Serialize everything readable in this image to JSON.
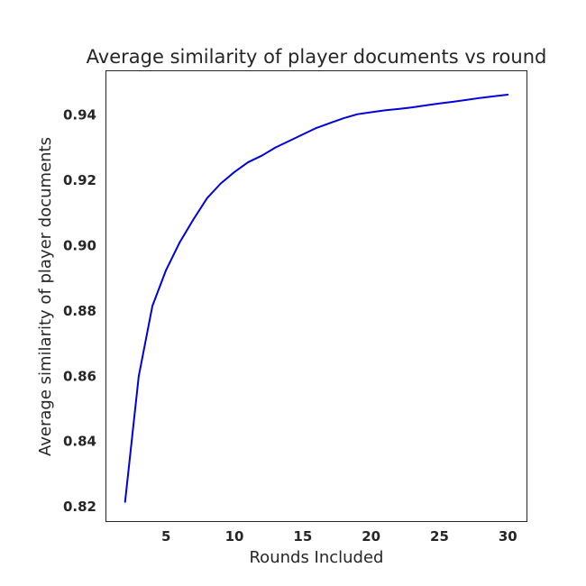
{
  "chart_data": {
    "type": "line",
    "title": "Average similarity of player documents vs round",
    "xlabel": "Rounds Included",
    "ylabel": "Average similarity of player documents",
    "xlim": [
      0.6,
      31.4
    ],
    "ylim": [
      0.8155,
      0.9535
    ],
    "xticks": [
      5,
      10,
      15,
      20,
      25,
      30
    ],
    "yticks": [
      0.82,
      0.84,
      0.86,
      0.88,
      0.9,
      0.92,
      0.94
    ],
    "ytick_labels": [
      "0.82",
      "0.84",
      "0.86",
      "0.88",
      "0.90",
      "0.92",
      "0.94"
    ],
    "grid": false,
    "legend": "none",
    "series": [
      {
        "color": "#0000dd",
        "x": [
          2,
          3,
          4,
          5,
          6,
          7,
          8,
          9,
          10,
          11,
          12,
          13,
          14,
          15,
          16,
          17,
          18,
          19,
          20,
          21,
          22,
          23,
          24,
          25,
          26,
          27,
          28,
          29,
          30
        ],
        "y": [
          0.8215,
          0.86,
          0.8815,
          0.8925,
          0.901,
          0.908,
          0.9145,
          0.919,
          0.9225,
          0.9255,
          0.9275,
          0.93,
          0.932,
          0.934,
          0.936,
          0.9375,
          0.939,
          0.9402,
          0.9408,
          0.9414,
          0.9418,
          0.9423,
          0.9429,
          0.9435,
          0.944,
          0.9446,
          0.9452,
          0.9457,
          0.9462
        ]
      }
    ]
  }
}
